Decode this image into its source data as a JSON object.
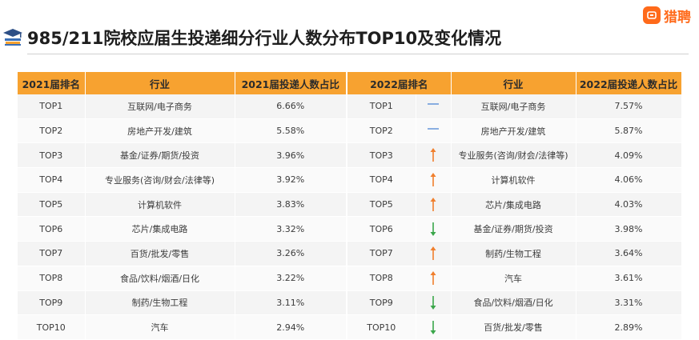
{
  "title": "985/211院校应届生投递细分行业人数分布TOP10及变化情况",
  "logo_text": "猎聘",
  "colors": {
    "header_bg": "#f7a230",
    "up": "#f07f2d",
    "down": "#3aa64a",
    "flat": "#5a8fd8"
  },
  "headers": [
    "2021届排名",
    "行业",
    "2021届投递人数占比",
    "2022届排名",
    "",
    "行业",
    "2022届投递人数占比"
  ],
  "rows": [
    {
      "rank2021": "TOP1",
      "ind2021": "互联网/电子商务",
      "pct2021": "6.66%",
      "rank2022": "TOP1",
      "trend": "flat",
      "ind2022": "互联网/电子商务",
      "pct2022": "7.57%"
    },
    {
      "rank2021": "TOP2",
      "ind2021": "房地产开发/建筑",
      "pct2021": "5.58%",
      "rank2022": "TOP2",
      "trend": "flat",
      "ind2022": "房地产开发/建筑",
      "pct2022": "5.87%"
    },
    {
      "rank2021": "TOP3",
      "ind2021": "基金/证券/期货/投资",
      "pct2021": "3.96%",
      "rank2022": "TOP3",
      "trend": "up",
      "ind2022": "专业服务(咨询/财会/法律等)",
      "pct2022": "4.09%"
    },
    {
      "rank2021": "TOP4",
      "ind2021": "专业服务(咨询/财会/法律等)",
      "pct2021": "3.92%",
      "rank2022": "TOP4",
      "trend": "up",
      "ind2022": "计算机软件",
      "pct2022": "4.06%"
    },
    {
      "rank2021": "TOP5",
      "ind2021": "计算机软件",
      "pct2021": "3.83%",
      "rank2022": "TOP5",
      "trend": "up",
      "ind2022": "芯片/集成电路",
      "pct2022": "4.03%"
    },
    {
      "rank2021": "TOP6",
      "ind2021": "芯片/集成电路",
      "pct2021": "3.32%",
      "rank2022": "TOP6",
      "trend": "down",
      "ind2022": "基金/证券/期货/投资",
      "pct2022": "3.98%"
    },
    {
      "rank2021": "TOP7",
      "ind2021": "百货/批发/零售",
      "pct2021": "3.26%",
      "rank2022": "TOP7",
      "trend": "up",
      "ind2022": "制药/生物工程",
      "pct2022": "3.64%"
    },
    {
      "rank2021": "TOP8",
      "ind2021": "食品/饮料/烟酒/日化",
      "pct2021": "3.22%",
      "rank2022": "TOP8",
      "trend": "up",
      "ind2022": "汽车",
      "pct2022": "3.61%"
    },
    {
      "rank2021": "TOP9",
      "ind2021": "制药/生物工程",
      "pct2021": "3.11%",
      "rank2022": "TOP9",
      "trend": "down",
      "ind2022": "食品/饮料/烟酒/日化",
      "pct2022": "3.31%"
    },
    {
      "rank2021": "TOP10",
      "ind2021": "汽车",
      "pct2021": "2.94%",
      "rank2022": "TOP10",
      "trend": "down",
      "ind2022": "百货/批发/零售",
      "pct2022": "2.89%"
    }
  ]
}
